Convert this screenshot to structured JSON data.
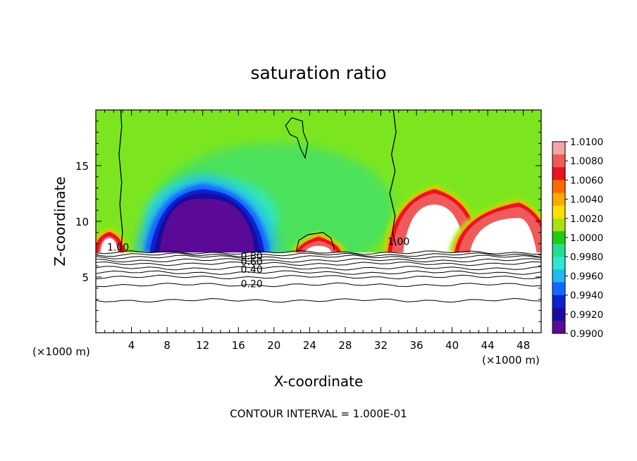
{
  "chart_data": {
    "type": "heatmap",
    "title": "saturation ratio",
    "xlabel": "X-coordinate",
    "ylabel": "Z-coordinate",
    "x_unit_left": "(×1000 m)",
    "x_unit_right": "(×1000 m)",
    "footer": "CONTOUR INTERVAL = 1.000E-01",
    "xlim": [
      0,
      50
    ],
    "ylim": [
      0,
      20
    ],
    "x_ticks": [
      4,
      8,
      12,
      16,
      20,
      24,
      28,
      32,
      36,
      40,
      44,
      48
    ],
    "x_tick_labels": [
      "4",
      "8",
      "12",
      "16",
      "20",
      "24",
      "28",
      "32",
      "36",
      "40",
      "44",
      "48"
    ],
    "y_ticks": [
      5,
      10,
      15
    ],
    "y_tick_labels": [
      "5",
      "10",
      "15"
    ],
    "colorbar": {
      "labels": [
        "1.0100",
        "1.0080",
        "1.0060",
        "1.0040",
        "1.0020",
        "1.0000",
        "0.9980",
        "0.9960",
        "0.9940",
        "0.9920",
        "0.9900"
      ],
      "colors": [
        "#f4a5a5",
        "#f05a5a",
        "#e8141e",
        "#ff6a00",
        "#ffaa00",
        "#ffe000",
        "#a8e010",
        "#22cc10",
        "#26dd8c",
        "#2ee8d0",
        "#22b8f0",
        "#1268ff",
        "#0a22d0",
        "#1a0aa0",
        "#5a0a96"
      ]
    },
    "colors": {
      "ridge": "#22cc10",
      "background": "#7be620",
      "min": "#1a0aa0",
      "max": "#e8141e"
    },
    "cloud_base_z": 7.2,
    "features": [
      {
        "kind": "subsaturated",
        "x": [
          6.5,
          18.5
        ],
        "peak_x": 12,
        "top_z": 12.5,
        "min": 0.9905
      },
      {
        "kind": "supersaturated",
        "x": [
          34.5,
          41.5
        ],
        "peak_x": 38,
        "top_z": 11.5,
        "max": 1.01
      },
      {
        "kind": "supersaturated",
        "x": [
          23.5,
          26.5
        ],
        "peak_x": 25,
        "top_z": 7.8,
        "max": 1.008
      },
      {
        "kind": "supersaturated",
        "x": [
          0.5,
          2.5
        ],
        "peak_x": 1.5,
        "top_z": 8.5,
        "max": 1.008
      },
      {
        "kind": "supersaturated",
        "x": [
          42,
          49.5
        ],
        "peak_x": 47.5,
        "top_z": 10.3,
        "max": 1.008
      }
    ],
    "contour_labels": [
      {
        "text": "1.00",
        "x": 2.5,
        "z": 7.7
      },
      {
        "text": "1.00",
        "x": 34,
        "z": 8.2
      },
      {
        "text": "0.80",
        "x": 17.5,
        "z": 6.9
      },
      {
        "text": "0.60",
        "x": 17.5,
        "z": 6.4
      },
      {
        "text": "0.40",
        "x": 17.5,
        "z": 5.7
      },
      {
        "text": "0.20",
        "x": 17.5,
        "z": 4.4
      }
    ],
    "low_contours_z": [
      2.9,
      4.3,
      5.0,
      5.4,
      5.8,
      6.2,
      6.5,
      6.8,
      7.0,
      7.2
    ]
  }
}
